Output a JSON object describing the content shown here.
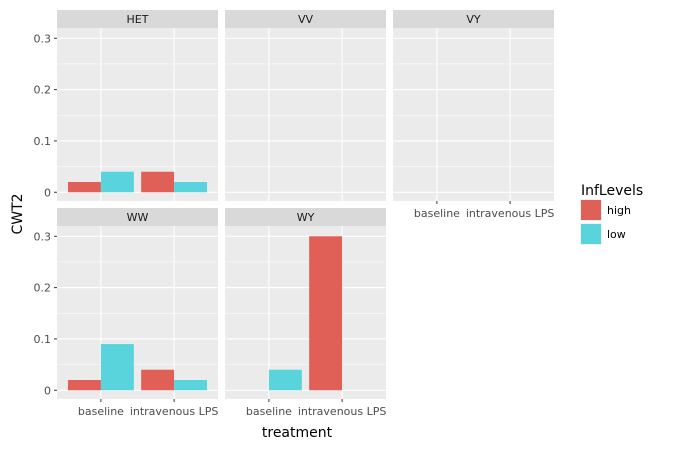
{
  "chart_data": {
    "type": "bar",
    "xlabel": "treatment",
    "ylabel": "CWT2",
    "categories": [
      "baseline",
      "intravenous LPS"
    ],
    "ylim": [
      0,
      0.32
    ],
    "yticks": [
      0,
      0.1,
      0.2,
      0.3
    ],
    "ytick_labels": [
      "0",
      "0.1",
      "0.2",
      "0.3"
    ],
    "grid": true,
    "legend": {
      "title": "InfLevels",
      "placement": "right",
      "entries": [
        {
          "name": "high",
          "color": "#e06058"
        },
        {
          "name": "low",
          "color": "#59d4dc"
        }
      ]
    },
    "facets": [
      {
        "name": "HET",
        "series": [
          {
            "name": "high",
            "values": [
              0.02,
              0.04
            ]
          },
          {
            "name": "low",
            "values": [
              0.04,
              0.02
            ]
          }
        ]
      },
      {
        "name": "VV",
        "series": [
          {
            "name": "high",
            "values": [
              null,
              null
            ]
          },
          {
            "name": "low",
            "values": [
              null,
              null
            ]
          }
        ]
      },
      {
        "name": "VY",
        "series": [
          {
            "name": "high",
            "values": [
              null,
              null
            ]
          },
          {
            "name": "low",
            "values": [
              null,
              null
            ]
          }
        ]
      },
      {
        "name": "WW",
        "series": [
          {
            "name": "high",
            "values": [
              0.02,
              0.04
            ]
          },
          {
            "name": "low",
            "values": [
              0.09,
              0.02
            ]
          }
        ]
      },
      {
        "name": "WY",
        "series": [
          {
            "name": "high",
            "values": [
              null,
              0.3
            ]
          },
          {
            "name": "low",
            "values": [
              0.04,
              null
            ]
          }
        ]
      }
    ]
  }
}
